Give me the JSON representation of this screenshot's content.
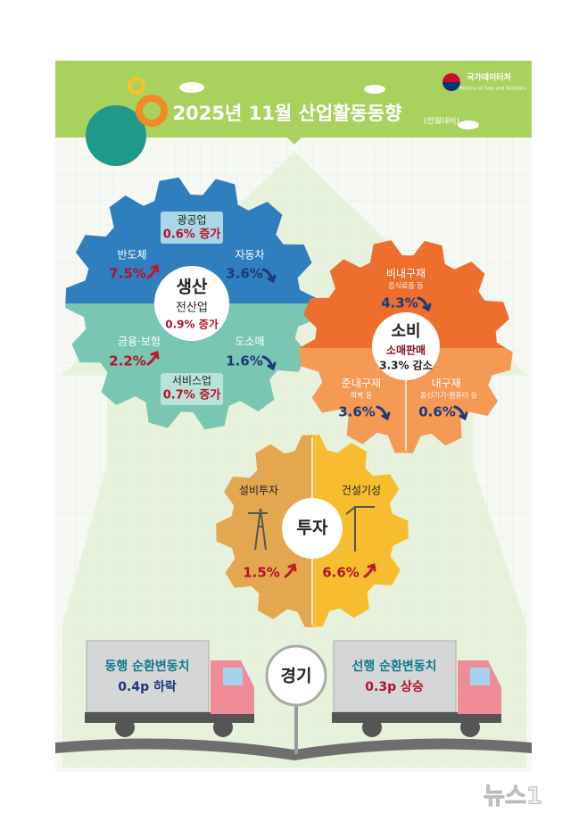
{
  "header": {
    "title": "2025년 11월 산업활동동향",
    "subtitle": "(전월대비)",
    "agency": "국가데이터처",
    "agency_en": "Ministry of Data and Statistics"
  },
  "production": {
    "title": "생산",
    "total_label": "전산업",
    "total": "0.9% 증가",
    "mining": {
      "label": "광공업",
      "value": "0.6% 증가"
    },
    "semiconductor": {
      "label": "반도체",
      "value": "7.5%"
    },
    "automobile": {
      "label": "자동차",
      "value": "3.6%"
    },
    "finance": {
      "label": "금융·보험",
      "value": "2.2%"
    },
    "wholesale": {
      "label": "도소매",
      "value": "1.6%"
    },
    "services": {
      "label": "서비스업",
      "value": "0.7% 증가"
    }
  },
  "consumption": {
    "title": "소비",
    "total_label": "소매판매",
    "total": "3.3% 감소",
    "nondurable": {
      "label": "비내구재",
      "note": "음식료품 등",
      "value": "4.3%"
    },
    "semidurable": {
      "label": "준내구재",
      "note": "의복 등",
      "value": "3.6%"
    },
    "durable": {
      "label": "내구재",
      "note": "통신기기·컴퓨터 등",
      "value": "0.6%"
    }
  },
  "investment": {
    "title": "투자",
    "facility": {
      "label": "설비투자",
      "value": "1.5%"
    },
    "construction": {
      "label": "건설기성",
      "value": "6.6%"
    }
  },
  "economy": {
    "title": "경기",
    "coincident": {
      "label": "동행 순환변동치",
      "value": "0.4p 하락"
    },
    "leading": {
      "label": "선행 순환변동치",
      "value": "0.3p 상승"
    }
  },
  "watermark": "뉴스1"
}
